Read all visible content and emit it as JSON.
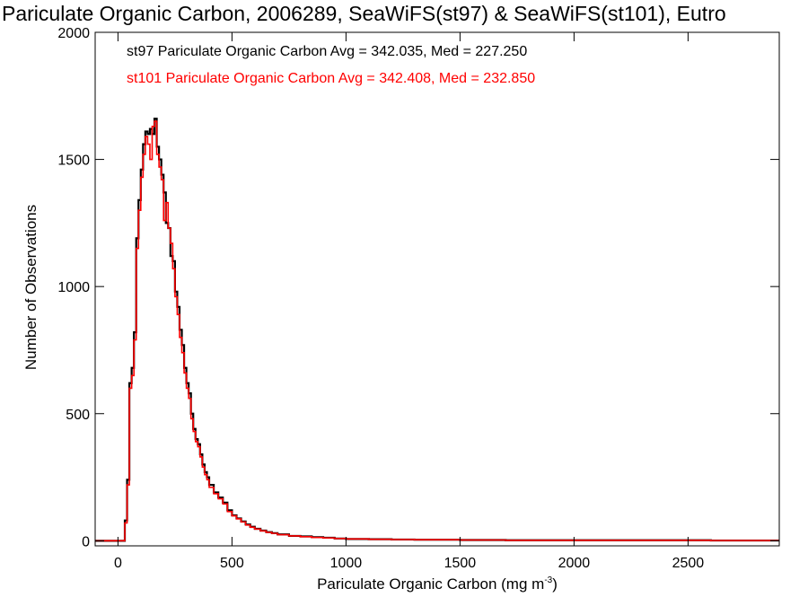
{
  "chart_data": {
    "type": "line",
    "title": "Pariculate Organic Carbon, 2006289, SeaWiFS(st97) & SeaWiFS(st101), Eutro",
    "xlabel": "Pariculate Organic Carbon (mg m",
    "xlabel_sup": "-3",
    "xlabel_end": ")",
    "ylabel": "Number of Observations",
    "xlim": [
      -100,
      2900
    ],
    "ylim": [
      -20,
      2000
    ],
    "xticks": [
      0,
      500,
      1000,
      1500,
      2000,
      2500
    ],
    "yticks": [
      0,
      500,
      1000,
      1500,
      2000
    ],
    "step": "histogram",
    "legend_position": "top-left",
    "series": [
      {
        "name": "st97",
        "legend": "st97 Pariculate Organic Carbon Avg = 342.035, Med = 227.250",
        "color": "#000000",
        "x": [
          -100,
          30,
          40,
          50,
          60,
          70,
          80,
          90,
          100,
          110,
          120,
          130,
          140,
          150,
          160,
          170,
          180,
          190,
          200,
          210,
          220,
          230,
          240,
          250,
          260,
          270,
          280,
          290,
          300,
          310,
          320,
          330,
          340,
          350,
          360,
          370,
          380,
          390,
          400,
          420,
          440,
          460,
          480,
          500,
          520,
          540,
          560,
          580,
          600,
          625,
          650,
          675,
          700,
          750,
          800,
          850,
          900,
          950,
          1000,
          1100,
          1200,
          1300,
          1400,
          1500,
          1600,
          1700,
          1800,
          1900,
          2000,
          2200,
          2400,
          2600,
          2800,
          2900
        ],
        "values": [
          0,
          80,
          240,
          620,
          680,
          820,
          1190,
          1340,
          1460,
          1560,
          1610,
          1600,
          1620,
          1600,
          1660,
          1550,
          1500,
          1440,
          1370,
          1250,
          1230,
          1120,
          1100,
          980,
          920,
          830,
          770,
          680,
          620,
          580,
          500,
          440,
          400,
          380,
          340,
          300,
          270,
          250,
          220,
          190,
          170,
          150,
          120,
          100,
          88,
          76,
          64,
          55,
          47,
          40,
          34,
          30,
          25,
          19,
          17,
          14,
          12,
          9,
          7,
          6,
          5,
          4,
          4,
          3,
          3,
          2,
          2,
          2,
          2,
          2,
          2,
          1,
          1,
          1
        ]
      },
      {
        "name": "st101",
        "legend": "st101 Pariculate Organic Carbon Avg = 342.408, Med = 232.850",
        "color": "#ff0000",
        "x": [
          -100,
          30,
          40,
          50,
          60,
          70,
          80,
          90,
          100,
          110,
          120,
          130,
          140,
          150,
          160,
          170,
          180,
          190,
          200,
          210,
          220,
          230,
          240,
          250,
          260,
          270,
          280,
          290,
          300,
          310,
          320,
          330,
          340,
          350,
          360,
          370,
          380,
          390,
          400,
          420,
          440,
          460,
          480,
          500,
          520,
          540,
          560,
          580,
          600,
          625,
          650,
          675,
          700,
          750,
          800,
          850,
          900,
          950,
          1000,
          1100,
          1200,
          1300,
          1400,
          1500,
          1600,
          1700,
          1800,
          1900,
          2000,
          2200,
          2400,
          2600,
          2800,
          2900
        ],
        "values": [
          0,
          70,
          220,
          600,
          650,
          790,
          1150,
          1300,
          1430,
          1520,
          1590,
          1560,
          1500,
          1630,
          1650,
          1520,
          1470,
          1420,
          1260,
          1330,
          1230,
          1170,
          1070,
          960,
          890,
          800,
          740,
          660,
          600,
          560,
          480,
          430,
          390,
          370,
          330,
          290,
          260,
          240,
          210,
          185,
          165,
          145,
          115,
          98,
          86,
          74,
          62,
          53,
          46,
          39,
          33,
          29,
          24,
          19,
          16,
          13,
          11,
          9,
          7,
          6,
          5,
          4,
          4,
          3,
          3,
          2,
          2,
          2,
          2,
          2,
          2,
          1,
          1,
          1
        ]
      }
    ]
  }
}
